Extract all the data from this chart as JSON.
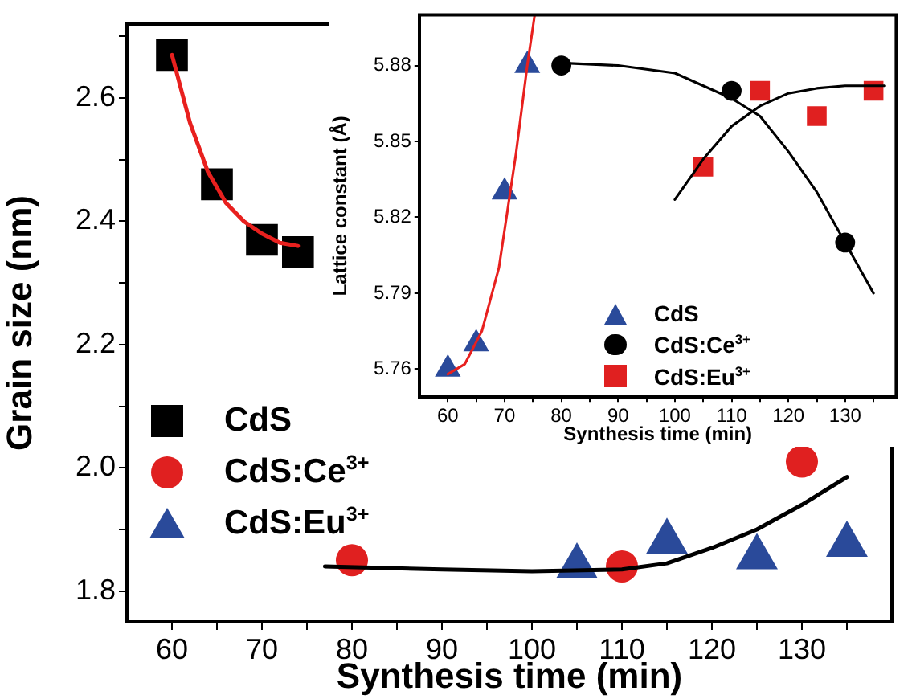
{
  "chart_data": [
    {
      "type": "scatter",
      "xlabel": "Synthesis time (min)",
      "ylabel": "Grain size (nm)",
      "xlim": [
        55,
        140
      ],
      "ylim": [
        1.75,
        2.72
      ],
      "xticks": [
        60,
        {
          "value": 65,
          "label": null
        },
        70,
        {
          "value": 75,
          "label": null
        },
        80,
        {
          "value": 85,
          "label": null
        },
        90,
        {
          "value": 95,
          "label": null
        },
        100,
        {
          "value": 105,
          "label": null
        },
        110,
        {
          "value": 115,
          "label": null
        },
        120,
        {
          "value": 125,
          "label": null
        },
        130,
        {
          "value": 135,
          "label": null
        }
      ],
      "yticks": [
        1.8,
        {
          "value": 1.9,
          "label": null
        },
        {
          "value": 2,
          "label": "2.0"
        },
        {
          "value": 2.1,
          "label": null
        },
        2.2,
        {
          "value": 2.3,
          "label": null
        },
        2.4,
        {
          "value": 2.5,
          "label": null
        },
        2.6,
        {
          "value": 2.7,
          "label": null
        }
      ],
      "grid": false,
      "legend": "left",
      "series": [
        {
          "name": "CdS",
          "type": "scatter",
          "marker": "square",
          "color": "#000000",
          "x": [
            60,
            65,
            70,
            74
          ],
          "values": [
            2.67,
            2.46,
            2.37,
            2.35
          ]
        },
        {
          "name": "CdS:Ce$^{3+}$",
          "type": "scatter",
          "marker": "circle",
          "color": "#e02020",
          "x": [
            80,
            110,
            130
          ],
          "values": [
            1.85,
            1.84,
            2.01
          ]
        },
        {
          "name": "CdS:Eu$^{3+}$",
          "type": "scatter",
          "marker": "triangle",
          "color": "#2a4a9a",
          "x": [
            105,
            115,
            125,
            135
          ],
          "values": [
            1.84,
            1.88,
            1.855,
            1.875
          ]
        },
        {
          "type": "line",
          "color": "#e8201e",
          "x": [
            60,
            62,
            64,
            66,
            68,
            70,
            72,
            74
          ],
          "values": [
            2.67,
            2.56,
            2.48,
            2.43,
            2.4,
            2.38,
            2.365,
            2.36
          ]
        },
        {
          "type": "line",
          "color": "#000000",
          "x": [
            77,
            90,
            100,
            110,
            115,
            120,
            125,
            130,
            135
          ],
          "values": [
            1.84,
            1.835,
            1.832,
            1.835,
            1.845,
            1.87,
            1.9,
            1.94,
            1.985
          ]
        }
      ]
    },
    {
      "type": "scatter",
      "xlabel": "Synthesis time (min)",
      "ylabel": "Lattice constant (Å)",
      "xlim": [
        55,
        139
      ],
      "ylim": [
        5.749,
        5.9
      ],
      "xticks": [
        60,
        {
          "value": 65,
          "label": null
        },
        70,
        {
          "value": 75,
          "label": null
        },
        80,
        {
          "value": 85,
          "label": null
        },
        90,
        {
          "value": 95,
          "label": null
        },
        100,
        {
          "value": 105,
          "label": null
        },
        110,
        {
          "value": 115,
          "label": null
        },
        120,
        {
          "value": 125,
          "label": null
        },
        130,
        {
          "value": 135,
          "label": null
        }
      ],
      "yticks": [
        5.76,
        5.79,
        5.82,
        5.85,
        5.88
      ],
      "grid": false,
      "legend": "bottom",
      "series": [
        {
          "name": "CdS",
          "type": "scatter",
          "marker": "triangle",
          "color": "#2a4a9a",
          "x": [
            60,
            65,
            70,
            74
          ],
          "values": [
            5.76,
            5.77,
            5.83,
            5.88
          ]
        },
        {
          "name": "CdS:Ce$^{3+}$",
          "type": "scatter",
          "marker": "circle",
          "color": "#000000",
          "x": [
            80,
            110,
            130
          ],
          "values": [
            5.88,
            5.87,
            5.81
          ]
        },
        {
          "name": "CdS:Eu$^{3+}$",
          "type": "scatter",
          "marker": "square",
          "color": "#e02020",
          "x": [
            105,
            115,
            125,
            135
          ],
          "values": [
            5.84,
            5.87,
            5.86,
            5.87
          ]
        },
        {
          "type": "line",
          "color": "#e8201e",
          "x": [
            60,
            63,
            66,
            69,
            72,
            74,
            75.3
          ],
          "values": [
            5.758,
            5.762,
            5.775,
            5.8,
            5.845,
            5.88,
            5.9
          ]
        },
        {
          "type": "line",
          "color": "#000000",
          "x": [
            80,
            90,
            100,
            110,
            115,
            120,
            125,
            130,
            135
          ],
          "values": [
            5.881,
            5.88,
            5.877,
            5.867,
            5.86,
            5.846,
            5.83,
            5.81,
            5.79
          ]
        },
        {
          "type": "line",
          "color": "#000000",
          "x": [
            100,
            105,
            110,
            115,
            120,
            125,
            130,
            137
          ],
          "values": [
            5.827,
            5.843,
            5.856,
            5.864,
            5.869,
            5.871,
            5.872,
            5.872
          ]
        }
      ]
    }
  ]
}
